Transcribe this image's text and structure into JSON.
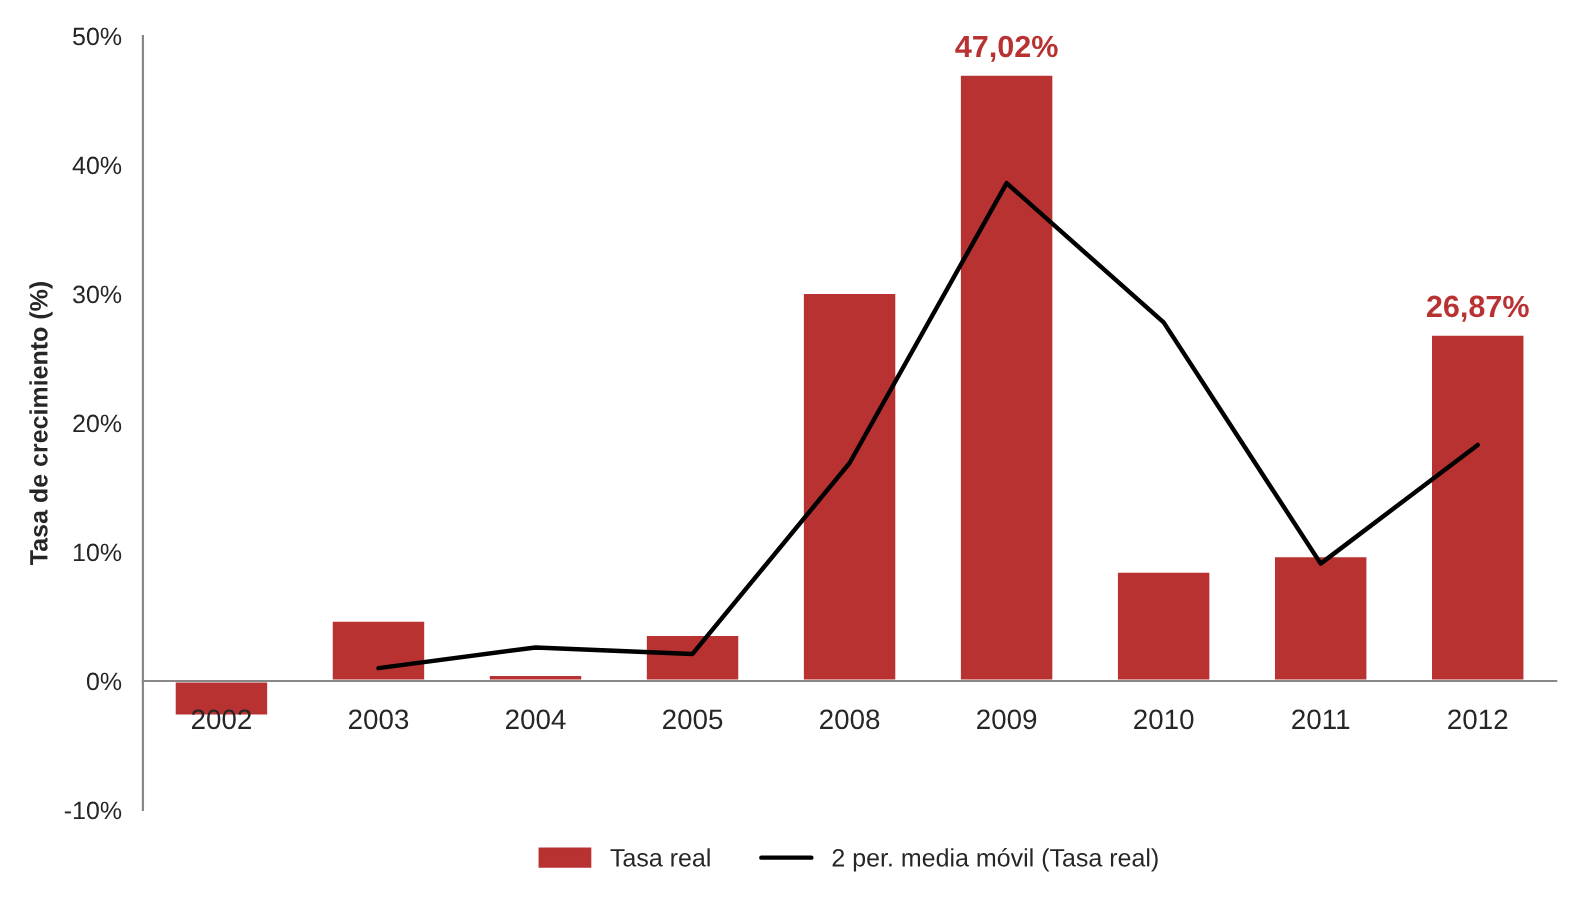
{
  "chart_data": {
    "type": "bar",
    "ylabel": "Tasa de crecimiento (%)",
    "categories": [
      "2002",
      "2003",
      "2004",
      "2005",
      "2008",
      "2009",
      "2010",
      "2011",
      "2012"
    ],
    "series": [
      {
        "name": "Tasa real",
        "color": "#b83232",
        "values": [
          -2.7,
          4.7,
          0.5,
          3.6,
          30.1,
          47.02,
          8.5,
          9.7,
          26.87
        ],
        "value_labels": [
          null,
          null,
          null,
          null,
          null,
          "47,02%",
          null,
          null,
          "26,87%"
        ]
      },
      {
        "name": "2 per. media móvil (Tasa real)",
        "type": "line",
        "color": "#000000",
        "values": [
          null,
          1.0,
          2.6,
          2.1,
          16.9,
          38.6,
          27.8,
          9.1,
          18.3
        ]
      }
    ],
    "ylim": [
      -10,
      50
    ],
    "yticks": [
      {
        "value": -10,
        "label": "-10%"
      },
      {
        "value": 0,
        "label": "0%"
      },
      {
        "value": 10,
        "label": "10%"
      },
      {
        "value": 20,
        "label": "20%"
      },
      {
        "value": 30,
        "label": "30%"
      },
      {
        "value": 40,
        "label": "40%"
      },
      {
        "value": 50,
        "label": "50%"
      }
    ],
    "grid": false,
    "legend": "bottom",
    "marker": "none",
    "line_style": "solid"
  }
}
